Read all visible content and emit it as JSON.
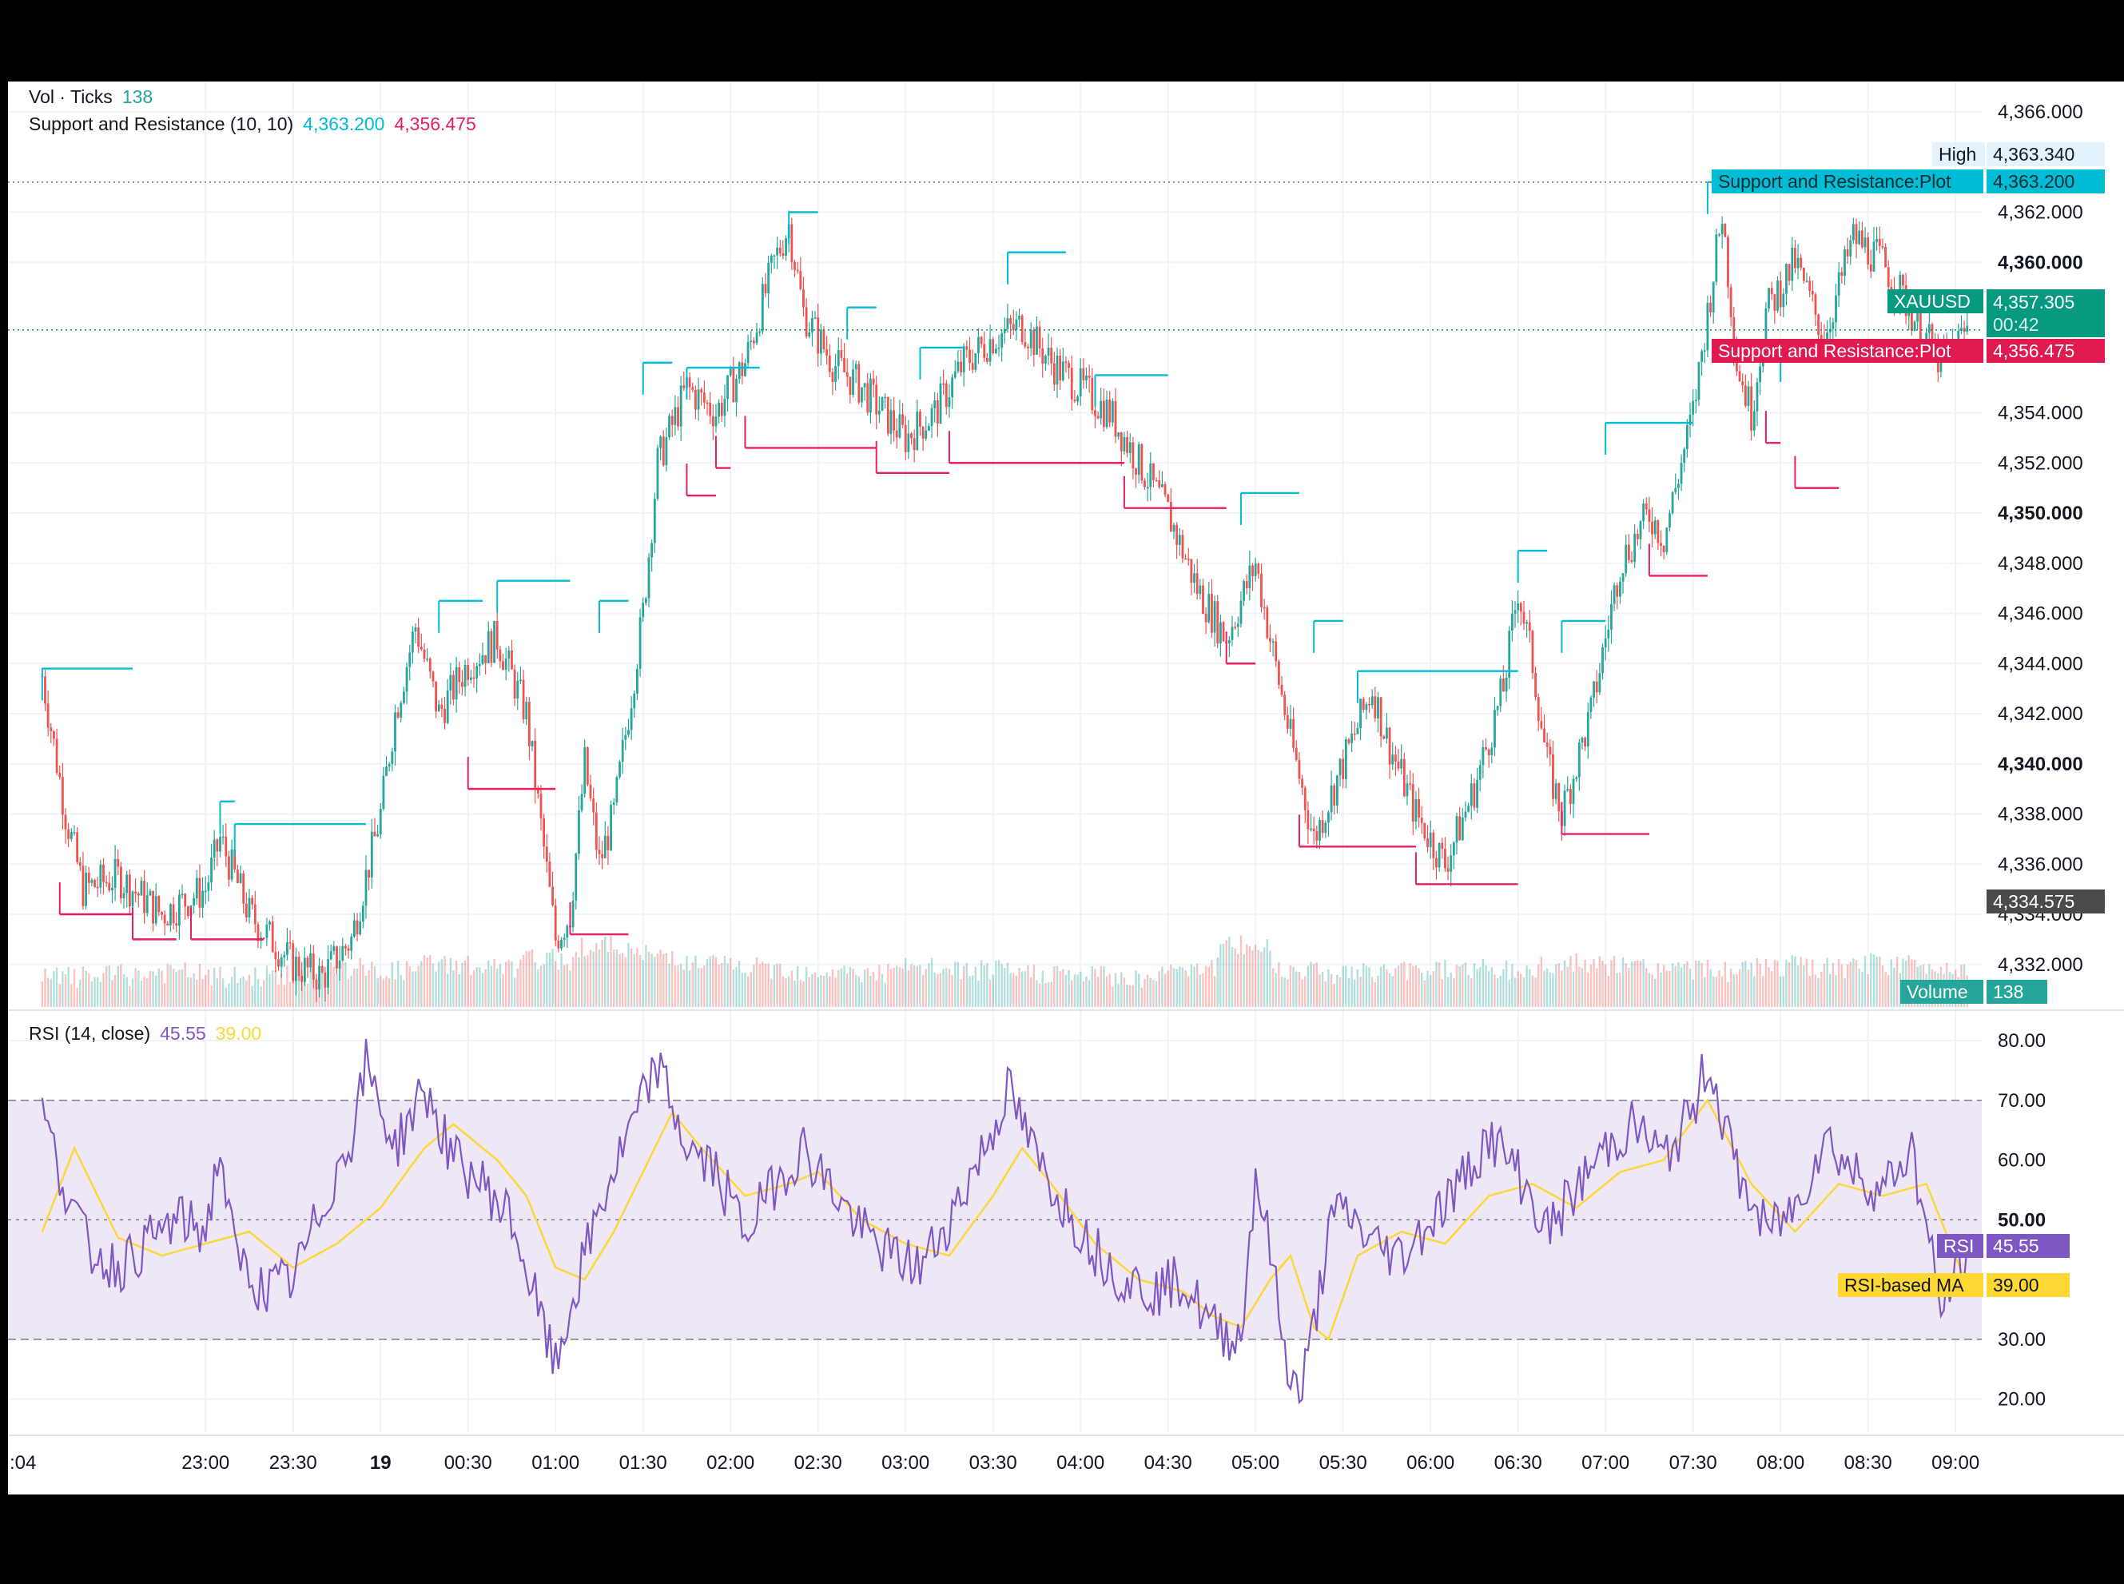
{
  "price_panel": {
    "legend_volume": {
      "label": "Vol · Ticks",
      "value": "138"
    },
    "legend_sr": {
      "label": "Support and Resistance (10, 10)",
      "resistance": "4,363.200",
      "support": "4,356.475"
    },
    "y_ticks": [
      "4,366.000",
      "4,362.000",
      "4,360.000",
      "4,354.000",
      "4,352.000",
      "4,350.000",
      "4,348.000",
      "4,346.000",
      "4,344.000",
      "4,342.000",
      "4,340.000",
      "4,338.000",
      "4,336.000",
      "4,334.000",
      "4,332.000"
    ],
    "bold_ticks": [
      "4,360.000",
      "4,350.000",
      "4,340.000"
    ],
    "tags": {
      "high_label": "High",
      "high_value": "4,363.340",
      "resistance_label": "Support and Resistance:Plot",
      "resistance_value": "4,363.200",
      "symbol_label": "XAUUSD",
      "symbol_value": "4,357.305",
      "countdown": "00:42",
      "support_label": "Support and Resistance:Plot",
      "support_value": "4,356.475",
      "low_value": "4,334.575",
      "volume_label": "Volume",
      "volume_value": "138"
    }
  },
  "rsi_panel": {
    "legend": {
      "label": "RSI (14, close)",
      "rsi": "45.55",
      "ma": "39.00"
    },
    "y_ticks": [
      "80.00",
      "70.00",
      "60.00",
      "50.00",
      "30.00",
      "20.00"
    ],
    "tags": {
      "rsi_label": "RSI",
      "rsi_value": "45.55",
      "ma_label": "RSI-based MA",
      "ma_value": "39.00"
    }
  },
  "time_axis": [
    "23:00",
    "23:30",
    "19",
    "00:30",
    "01:00",
    "01:30",
    "02:00",
    "02:30",
    "03:00",
    "03:30",
    "04:00",
    "04:30",
    "05:00",
    "05:30",
    "06:00",
    "06:30",
    "07:00",
    "07:30",
    "08:00",
    "08:30",
    "09:00"
  ],
  "time_axis_first": ":04",
  "colors": {
    "up": "#26a69a",
    "down": "#ef5350",
    "resistance": "#00bcd4",
    "support": "#e91e63",
    "rsi": "#7e57c2",
    "rsi_ma": "#fdd835",
    "rsi_band": "#ede7f6"
  },
  "chart_data": [
    {
      "type": "line",
      "title": "XAUUSD",
      "x_unit": "time",
      "x_start": "22:04",
      "x_end": "09:04",
      "close_path": [
        [
          "22:04",
          4343.5
        ],
        [
          "22:12",
          4338
        ],
        [
          "22:18",
          4335
        ],
        [
          "22:30",
          4335.5
        ],
        [
          "22:45",
          4334
        ],
        [
          "23:00",
          4335
        ],
        [
          "23:05",
          4337
        ],
        [
          "23:15",
          4334
        ],
        [
          "23:30",
          4332
        ],
        [
          "23:40",
          4331.5
        ],
        [
          "23:50",
          4333
        ],
        [
          "00:00",
          4338
        ],
        [
          "00:05",
          4342
        ],
        [
          "00:12",
          4345.5
        ],
        [
          "00:20",
          4342
        ],
        [
          "00:30",
          4344
        ],
        [
          "00:40",
          4345
        ],
        [
          "00:50",
          4342
        ],
        [
          "01:00",
          4333
        ],
        [
          "01:05",
          4334
        ],
        [
          "01:10",
          4340
        ],
        [
          "01:15",
          4336
        ],
        [
          "01:20",
          4338
        ],
        [
          "01:30",
          4346
        ],
        [
          "01:35",
          4352
        ],
        [
          "01:45",
          4355
        ],
        [
          "01:55",
          4354
        ],
        [
          "02:05",
          4356
        ],
        [
          "02:15",
          4360
        ],
        [
          "02:20",
          4361.5
        ],
        [
          "02:25",
          4358
        ],
        [
          "02:35",
          4356
        ],
        [
          "02:45",
          4355
        ],
        [
          "03:00",
          4353
        ],
        [
          "03:10",
          4354
        ],
        [
          "03:20",
          4356
        ],
        [
          "03:30",
          4357
        ],
        [
          "03:40",
          4357.5
        ],
        [
          "03:50",
          4356
        ],
        [
          "04:00",
          4355
        ],
        [
          "04:10",
          4354
        ],
        [
          "04:20",
          4352
        ],
        [
          "04:30",
          4350
        ],
        [
          "04:40",
          4347
        ],
        [
          "04:50",
          4345
        ],
        [
          "05:00",
          4348
        ],
        [
          "05:05",
          4345
        ],
        [
          "05:12",
          4341
        ],
        [
          "05:20",
          4337
        ],
        [
          "05:30",
          4340
        ],
        [
          "05:40",
          4343
        ],
        [
          "05:45",
          4341
        ],
        [
          "05:55",
          4338
        ],
        [
          "06:05",
          4336
        ],
        [
          "06:15",
          4339
        ],
        [
          "06:25",
          4343
        ],
        [
          "06:30",
          4347
        ],
        [
          "06:35",
          4344
        ],
        [
          "06:40",
          4340
        ],
        [
          "06:45",
          4338
        ],
        [
          "06:55",
          4342
        ],
        [
          "07:00",
          4345
        ],
        [
          "07:05",
          4348
        ],
        [
          "07:15",
          4350
        ],
        [
          "07:20",
          4349
        ],
        [
          "07:30",
          4354
        ],
        [
          "07:40",
          4362
        ],
        [
          "07:45",
          4356
        ],
        [
          "07:50",
          4354
        ],
        [
          "07:55",
          4358
        ],
        [
          "08:05",
          4360
        ],
        [
          "08:15",
          4357
        ],
        [
          "08:25",
          4361
        ],
        [
          "08:35",
          4360
        ],
        [
          "08:45",
          4358
        ],
        [
          "08:55",
          4356
        ],
        [
          "09:04",
          4357.305
        ]
      ],
      "high": 4363.34,
      "low": 4334.575,
      "last": 4357.305,
      "resistance_levels": [
        [
          "22:04",
          "22:35",
          4343.8
        ],
        [
          "23:05",
          "23:10",
          4338.5
        ],
        [
          "23:10",
          "23:55",
          4337.6
        ],
        [
          "00:20",
          "00:35",
          4346.5
        ],
        [
          "00:40",
          "01:05",
          4347.3
        ],
        [
          "01:15",
          "01:25",
          4346.5
        ],
        [
          "01:30",
          "01:40",
          4356
        ],
        [
          "01:45",
          "02:10",
          4355.8
        ],
        [
          "02:20",
          "02:30",
          4362
        ],
        [
          "02:40",
          "02:50",
          4358.2
        ],
        [
          "03:05",
          "03:20",
          4356.6
        ],
        [
          "03:35",
          "03:55",
          4360.4
        ],
        [
          "04:05",
          "04:30",
          4355.5
        ],
        [
          "04:55",
          "05:15",
          4350.8
        ],
        [
          "05:20",
          "05:30",
          4345.7
        ],
        [
          "05:35",
          "06:30",
          4343.7
        ],
        [
          "06:30",
          "06:40",
          4348.5
        ],
        [
          "06:45",
          "07:00",
          4345.7
        ],
        [
          "07:00",
          "07:30",
          4353.6
        ],
        [
          "07:35",
          "07:55",
          4363.2
        ],
        [
          "08:00",
          "08:05",
          4356.5
        ]
      ],
      "support_levels": [
        [
          "22:10",
          "22:35",
          4334
        ],
        [
          "22:35",
          "22:50",
          4333
        ],
        [
          "22:55",
          "23:20",
          4333
        ],
        [
          "00:30",
          "01:00",
          4339
        ],
        [
          "01:05",
          "01:25",
          4333.2
        ],
        [
          "01:45",
          "01:55",
          4350.7
        ],
        [
          "01:55",
          "02:00",
          4351.8
        ],
        [
          "02:05",
          "02:50",
          4352.6
        ],
        [
          "02:50",
          "03:15",
          4351.6
        ],
        [
          "03:15",
          "04:15",
          4352
        ],
        [
          "04:15",
          "04:50",
          4350.2
        ],
        [
          "04:50",
          "05:00",
          4344
        ],
        [
          "05:15",
          "05:55",
          4336.7
        ],
        [
          "05:55",
          "06:30",
          4335.2
        ],
        [
          "06:45",
          "07:15",
          4337.2
        ],
        [
          "07:15",
          "07:35",
          4347.5
        ],
        [
          "07:55",
          "08:00",
          4352.8
        ],
        [
          "08:05",
          "08:20",
          4351
        ]
      ]
    },
    {
      "type": "bar",
      "title": "Vol · Ticks",
      "x_unit": "time",
      "last_value": 138,
      "relative_profile": [
        0.3,
        0.35,
        0.4,
        0.3,
        0.35,
        0.5,
        0.45,
        0.6,
        0.5,
        0.7,
        1.0,
        0.8,
        0.6,
        0.5,
        0.45,
        0.4,
        0.5,
        0.45,
        0.4,
        0.35,
        0.3,
        0.55,
        1.0,
        0.5,
        0.4,
        0.45,
        0.5,
        0.45,
        0.6,
        0.55,
        0.5,
        0.45,
        0.55,
        0.5,
        0.6,
        0.55
      ]
    },
    {
      "type": "line",
      "title": "RSI (14, close)",
      "x_unit": "time",
      "ylim": [
        15,
        85
      ],
      "bands": [
        30,
        50,
        70
      ],
      "series": [
        {
          "name": "RSI",
          "last": 45.55,
          "points": [
            [
              "22:04",
              68
            ],
            [
              "22:10",
              58
            ],
            [
              "22:20",
              45
            ],
            [
              "22:30",
              42
            ],
            [
              "22:40",
              46
            ],
            [
              "22:50",
              50
            ],
            [
              "23:00",
              48
            ],
            [
              "23:05",
              62
            ],
            [
              "23:10",
              44
            ],
            [
              "23:20",
              38
            ],
            [
              "23:30",
              40
            ],
            [
              "23:40",
              52
            ],
            [
              "23:50",
              64
            ],
            [
              "23:55",
              76
            ],
            [
              "00:05",
              62
            ],
            [
              "00:15",
              72
            ],
            [
              "00:25",
              60
            ],
            [
              "00:35",
              56
            ],
            [
              "00:45",
              50
            ],
            [
              "01:00",
              25
            ],
            [
              "01:05",
              35
            ],
            [
              "01:15",
              52
            ],
            [
              "01:25",
              64
            ],
            [
              "01:30",
              70
            ],
            [
              "01:35",
              76
            ],
            [
              "01:45",
              62
            ],
            [
              "01:55",
              58
            ],
            [
              "02:05",
              48
            ],
            [
              "02:15",
              56
            ],
            [
              "02:25",
              62
            ],
            [
              "02:35",
              55
            ],
            [
              "02:45",
              48
            ],
            [
              "02:55",
              44
            ],
            [
              "03:05",
              42
            ],
            [
              "03:15",
              50
            ],
            [
              "03:25",
              60
            ],
            [
              "03:30",
              65
            ],
            [
              "03:35",
              72
            ],
            [
              "03:45",
              60
            ],
            [
              "03:55",
              52
            ],
            [
              "04:05",
              45
            ],
            [
              "04:15",
              40
            ],
            [
              "04:25",
              38
            ],
            [
              "04:35",
              40
            ],
            [
              "04:45",
              32
            ],
            [
              "04:55",
              30
            ],
            [
              "05:00",
              58
            ],
            [
              "05:05",
              45
            ],
            [
              "05:10",
              28
            ],
            [
              "05:15",
              20
            ],
            [
              "05:20",
              32
            ],
            [
              "05:25",
              48
            ],
            [
              "05:30",
              52
            ],
            [
              "05:40",
              46
            ],
            [
              "05:50",
              44
            ],
            [
              "06:00",
              50
            ],
            [
              "06:10",
              56
            ],
            [
              "06:20",
              64
            ],
            [
              "06:30",
              58
            ],
            [
              "06:40",
              48
            ],
            [
              "06:50",
              55
            ],
            [
              "07:00",
              62
            ],
            [
              "07:10",
              66
            ],
            [
              "07:20",
              60
            ],
            [
              "07:30",
              68
            ],
            [
              "07:35",
              77
            ],
            [
              "07:45",
              58
            ],
            [
              "07:55",
              48
            ],
            [
              "08:05",
              52
            ],
            [
              "08:15",
              64
            ],
            [
              "08:25",
              58
            ],
            [
              "08:35",
              55
            ],
            [
              "08:45",
              62
            ],
            [
              "08:55",
              35
            ],
            [
              "09:04",
              45.55
            ]
          ]
        },
        {
          "name": "RSI-based MA",
          "last": 39.0,
          "points": [
            [
              "22:04",
              48
            ],
            [
              "22:15",
              62
            ],
            [
              "22:30",
              47
            ],
            [
              "22:45",
              44
            ],
            [
              "23:00",
              46
            ],
            [
              "23:15",
              48
            ],
            [
              "23:30",
              42
            ],
            [
              "23:45",
              46
            ],
            [
              "00:00",
              52
            ],
            [
              "00:15",
              62
            ],
            [
              "00:25",
              66
            ],
            [
              "00:40",
              60
            ],
            [
              "00:50",
              54
            ],
            [
              "01:00",
              42
            ],
            [
              "01:10",
              40
            ],
            [
              "01:20",
              48
            ],
            [
              "01:30",
              58
            ],
            [
              "01:40",
              68
            ],
            [
              "01:50",
              62
            ],
            [
              "02:05",
              54
            ],
            [
              "02:20",
              56
            ],
            [
              "02:30",
              58
            ],
            [
              "02:45",
              50
            ],
            [
              "03:00",
              46
            ],
            [
              "03:15",
              44
            ],
            [
              "03:30",
              54
            ],
            [
              "03:40",
              62
            ],
            [
              "03:50",
              56
            ],
            [
              "04:05",
              46
            ],
            [
              "04:20",
              40
            ],
            [
              "04:35",
              38
            ],
            [
              "04:45",
              34
            ],
            [
              "04:55",
              32
            ],
            [
              "05:05",
              40
            ],
            [
              "05:12",
              44
            ],
            [
              "05:20",
              32
            ],
            [
              "05:25",
              30
            ],
            [
              "05:35",
              44
            ],
            [
              "05:50",
              48
            ],
            [
              "06:05",
              46
            ],
            [
              "06:20",
              54
            ],
            [
              "06:35",
              56
            ],
            [
              "06:50",
              52
            ],
            [
              "07:05",
              58
            ],
            [
              "07:20",
              60
            ],
            [
              "07:35",
              70
            ],
            [
              "07:50",
              56
            ],
            [
              "08:05",
              48
            ],
            [
              "08:20",
              56
            ],
            [
              "08:35",
              54
            ],
            [
              "08:50",
              56
            ],
            [
              "09:04",
              39.0
            ]
          ]
        }
      ]
    }
  ]
}
